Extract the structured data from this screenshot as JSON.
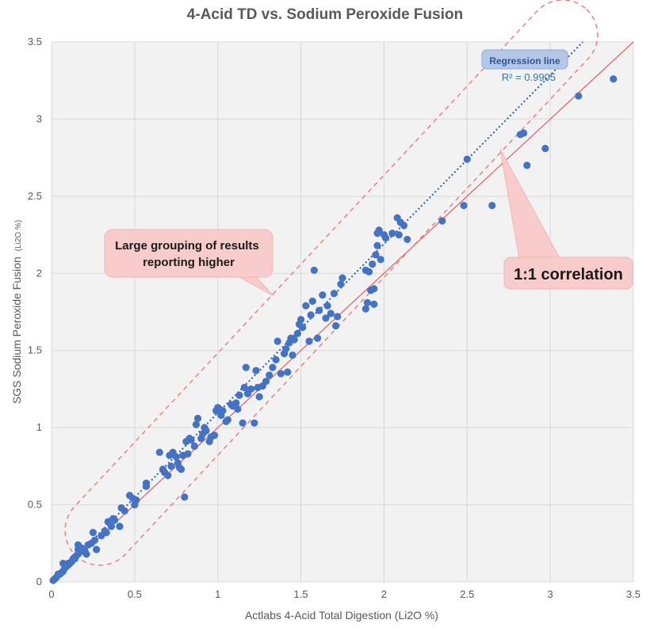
{
  "chart_data": {
    "type": "scatter",
    "title": "4-Acid TD vs. Sodium Peroxide Fusion",
    "xlabel": "Actlabs 4-Acid Total Digestion (Li2O %)",
    "ylabel_main": "SGS Sodium Peroxide Fusion",
    "ylabel_unit": "(Li2O %)",
    "xlim": [
      0,
      3.5
    ],
    "ylim": [
      0,
      3.5
    ],
    "xticks": [
      "0",
      "0.5",
      "1",
      "1.5",
      "2",
      "2.5",
      "3",
      "3.5"
    ],
    "yticks": [
      "0",
      "0.5",
      "1",
      "1.5",
      "2",
      "2.5",
      "3",
      "3.5"
    ],
    "grid": true,
    "point_color": "#4472c4",
    "one_to_one_color": "#e06666",
    "regression_color": "#2e5fa8",
    "regression": {
      "slope": 1.095,
      "intercept": 0,
      "r2_label": "R² = 0.9905"
    },
    "annotations": {
      "regression": "Regression line",
      "grouping": "Large grouping of results reporting higher",
      "correlation": "1:1 correlation"
    },
    "points": [
      [
        0.01,
        0.01
      ],
      [
        0.02,
        0.02
      ],
      [
        0.03,
        0.03
      ],
      [
        0.04,
        0.05
      ],
      [
        0.05,
        0.05
      ],
      [
        0.06,
        0.06
      ],
      [
        0.07,
        0.07
      ],
      [
        0.08,
        0.09
      ],
      [
        0.09,
        0.1
      ],
      [
        0.1,
        0.11
      ],
      [
        0.11,
        0.12
      ],
      [
        0.12,
        0.13
      ],
      [
        0.13,
        0.15
      ],
      [
        0.14,
        0.16
      ],
      [
        0.15,
        0.17
      ],
      [
        0.16,
        0.18
      ],
      [
        0.07,
        0.12
      ],
      [
        0.1,
        0.12
      ],
      [
        0.12,
        0.13
      ],
      [
        0.14,
        0.15
      ],
      [
        0.16,
        0.21
      ],
      [
        0.16,
        0.24
      ],
      [
        0.18,
        0.22
      ],
      [
        0.19,
        0.2
      ],
      [
        0.2,
        0.2
      ],
      [
        0.21,
        0.18
      ],
      [
        0.22,
        0.24
      ],
      [
        0.24,
        0.25
      ],
      [
        0.25,
        0.32
      ],
      [
        0.26,
        0.27
      ],
      [
        0.27,
        0.21
      ],
      [
        0.3,
        0.3
      ],
      [
        0.32,
        0.33
      ],
      [
        0.33,
        0.32
      ],
      [
        0.34,
        0.39
      ],
      [
        0.36,
        0.36
      ],
      [
        0.37,
        0.41
      ],
      [
        0.38,
        0.4
      ],
      [
        0.41,
        0.36
      ],
      [
        0.42,
        0.48
      ],
      [
        0.44,
        0.46
      ],
      [
        0.47,
        0.56
      ],
      [
        0.49,
        0.54
      ],
      [
        0.5,
        0.5
      ],
      [
        0.51,
        0.53
      ],
      [
        0.57,
        0.62
      ],
      [
        0.57,
        0.64
      ],
      [
        0.65,
        0.84
      ],
      [
        0.67,
        0.73
      ],
      [
        0.68,
        0.71
      ],
      [
        0.7,
        0.69
      ],
      [
        0.71,
        0.82
      ],
      [
        0.72,
        0.75
      ],
      [
        0.73,
        0.84
      ],
      [
        0.75,
        0.81
      ],
      [
        0.76,
        0.77
      ],
      [
        0.77,
        0.74
      ],
      [
        0.78,
        0.73
      ],
      [
        0.79,
        0.82
      ],
      [
        0.8,
        0.55
      ],
      [
        0.81,
        0.91
      ],
      [
        0.82,
        0.83
      ],
      [
        0.83,
        0.93
      ],
      [
        0.84,
        0.92
      ],
      [
        0.86,
        0.88
      ],
      [
        0.87,
        1.02
      ],
      [
        0.88,
        1.06
      ],
      [
        0.9,
        0.93
      ],
      [
        0.91,
        0.96
      ],
      [
        0.92,
        1.0
      ],
      [
        0.93,
        0.98
      ],
      [
        0.95,
        0.91
      ],
      [
        0.96,
        0.94
      ],
      [
        0.98,
        0.95
      ],
      [
        0.99,
        1.11
      ],
      [
        1.0,
        1.13
      ],
      [
        1.01,
        1.12
      ],
      [
        1.02,
        1.08
      ],
      [
        1.03,
        1.11
      ],
      [
        1.05,
        1.04
      ],
      [
        1.06,
        1.05
      ],
      [
        1.08,
        1.15
      ],
      [
        1.09,
        1.14
      ],
      [
        1.11,
        1.16
      ],
      [
        1.12,
        1.12
      ],
      [
        1.13,
        1.21
      ],
      [
        1.15,
        1.03
      ],
      [
        1.16,
        1.26
      ],
      [
        1.17,
        1.39
      ],
      [
        1.18,
        1.22
      ],
      [
        1.2,
        1.25
      ],
      [
        1.22,
        1.03
      ],
      [
        1.23,
        1.37
      ],
      [
        1.24,
        1.26
      ],
      [
        1.25,
        1.2
      ],
      [
        1.27,
        1.27
      ],
      [
        1.29,
        1.3
      ],
      [
        1.31,
        1.34
      ],
      [
        1.33,
        1.39
      ],
      [
        1.35,
        1.44
      ],
      [
        1.36,
        1.56
      ],
      [
        1.38,
        1.35
      ],
      [
        1.4,
        1.48
      ],
      [
        1.41,
        1.51
      ],
      [
        1.42,
        1.36
      ],
      [
        1.43,
        1.55
      ],
      [
        1.44,
        1.58
      ],
      [
        1.45,
        1.47
      ],
      [
        1.46,
        1.57
      ],
      [
        1.48,
        1.61
      ],
      [
        1.49,
        1.67
      ],
      [
        1.5,
        1.7
      ],
      [
        1.51,
        1.65
      ],
      [
        1.53,
        1.79
      ],
      [
        1.55,
        1.56
      ],
      [
        1.56,
        1.73
      ],
      [
        1.57,
        1.82
      ],
      [
        1.58,
        2.02
      ],
      [
        1.6,
        1.58
      ],
      [
        1.61,
        1.76
      ],
      [
        1.63,
        1.86
      ],
      [
        1.65,
        1.71
      ],
      [
        1.66,
        1.79
      ],
      [
        1.68,
        1.74
      ],
      [
        1.7,
        1.87
      ],
      [
        1.71,
        1.66
      ],
      [
        1.72,
        1.72
      ],
      [
        1.74,
        1.93
      ],
      [
        1.75,
        1.97
      ],
      [
        1.89,
        2.02
      ],
      [
        1.89,
        1.77
      ],
      [
        1.9,
        1.81
      ],
      [
        1.91,
        2.01
      ],
      [
        1.92,
        1.89
      ],
      [
        1.93,
        2.06
      ],
      [
        1.94,
        1.8
      ],
      [
        1.94,
        1.9
      ],
      [
        1.95,
        2.12
      ],
      [
        1.96,
        2.18
      ],
      [
        1.96,
        2.26
      ],
      [
        1.97,
        2.28
      ],
      [
        1.98,
        2.09
      ],
      [
        2.0,
        2.25
      ],
      [
        2.01,
        2.23
      ],
      [
        2.05,
        2.26
      ],
      [
        2.08,
        2.36
      ],
      [
        2.09,
        2.25
      ],
      [
        2.1,
        2.33
      ],
      [
        2.12,
        2.31
      ],
      [
        2.14,
        2.22
      ],
      [
        2.35,
        2.34
      ],
      [
        2.48,
        2.44
      ],
      [
        2.5,
        2.74
      ],
      [
        2.65,
        2.44
      ],
      [
        2.82,
        2.9
      ],
      [
        2.84,
        2.91
      ],
      [
        2.86,
        2.7
      ],
      [
        2.97,
        2.81
      ],
      [
        3.17,
        3.15
      ],
      [
        3.38,
        3.26
      ]
    ]
  }
}
